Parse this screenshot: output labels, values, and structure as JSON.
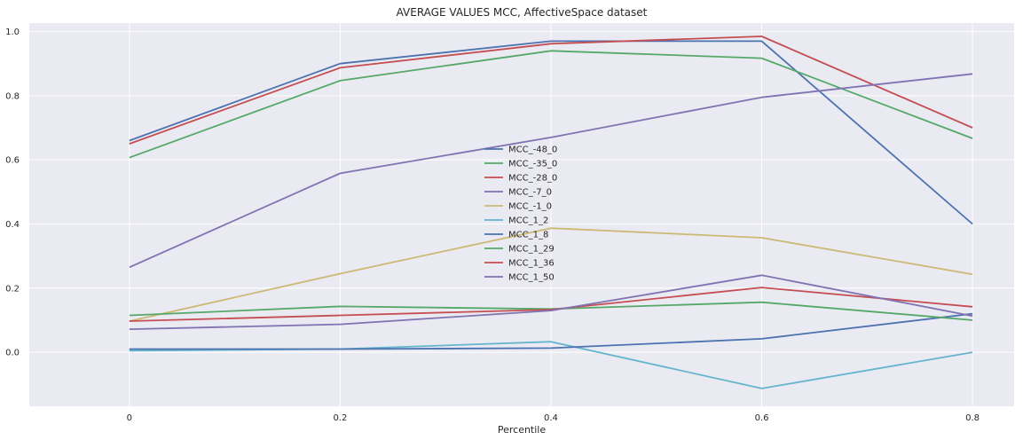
{
  "chart_data": {
    "type": "line",
    "title": "AVERAGE VALUES MCC, AffectiveSpace dataset",
    "xlabel": "Percentile",
    "ylabel": "",
    "x": [
      0,
      0.2,
      0.4,
      0.6,
      0.8
    ],
    "x_tick_labels": [
      "0",
      "0.2",
      "0.4",
      "0.6",
      "0.8"
    ],
    "y_ticks": [
      0.0,
      0.2,
      0.4,
      0.6,
      0.8,
      1.0
    ],
    "y_tick_labels": [
      "0.0",
      "0.2",
      "0.4",
      "0.6",
      "0.8",
      "1.0"
    ],
    "xlim": [
      -0.095,
      0.8395
    ],
    "ylim": [
      -0.1685,
      1.0265
    ],
    "grid": true,
    "legend_placement": "center",
    "background": "#eaeaf2",
    "series": [
      {
        "name": "MCC_-48_0",
        "color": "#4c72b0",
        "values": [
          0.66,
          0.9,
          0.97,
          0.97,
          0.4
        ]
      },
      {
        "name": "MCC_-35_0",
        "color": "#55a868",
        "values": [
          0.607,
          0.847,
          0.94,
          0.917,
          0.667
        ]
      },
      {
        "name": "MCC_-28_0",
        "color": "#c44e52",
        "values": [
          0.65,
          0.887,
          0.962,
          0.985,
          0.7
        ]
      },
      {
        "name": "MCC_-7_0",
        "color": "#8172b2",
        "values": [
          0.265,
          0.558,
          0.67,
          0.795,
          0.868
        ]
      },
      {
        "name": "MCC_-1_0",
        "color": "#ccb974",
        "values": [
          0.097,
          0.245,
          0.387,
          0.357,
          0.243
        ]
      },
      {
        "name": "MCC_1_2",
        "color": "#64b5cd",
        "values": [
          0.005,
          0.01,
          0.033,
          -0.113,
          0.0
        ]
      },
      {
        "name": "MCC_1_8",
        "color": "#4c72b0",
        "values": [
          0.01,
          0.01,
          0.013,
          0.042,
          0.12
        ]
      },
      {
        "name": "MCC_1_29",
        "color": "#55a868",
        "values": [
          0.115,
          0.143,
          0.135,
          0.156,
          0.1
        ]
      },
      {
        "name": "MCC_1_36",
        "color": "#c44e52",
        "values": [
          0.097,
          0.115,
          0.133,
          0.202,
          0.142
        ]
      },
      {
        "name": "MCC_1_50",
        "color": "#8172b2",
        "values": [
          0.072,
          0.087,
          0.13,
          0.24,
          0.113
        ]
      }
    ]
  }
}
